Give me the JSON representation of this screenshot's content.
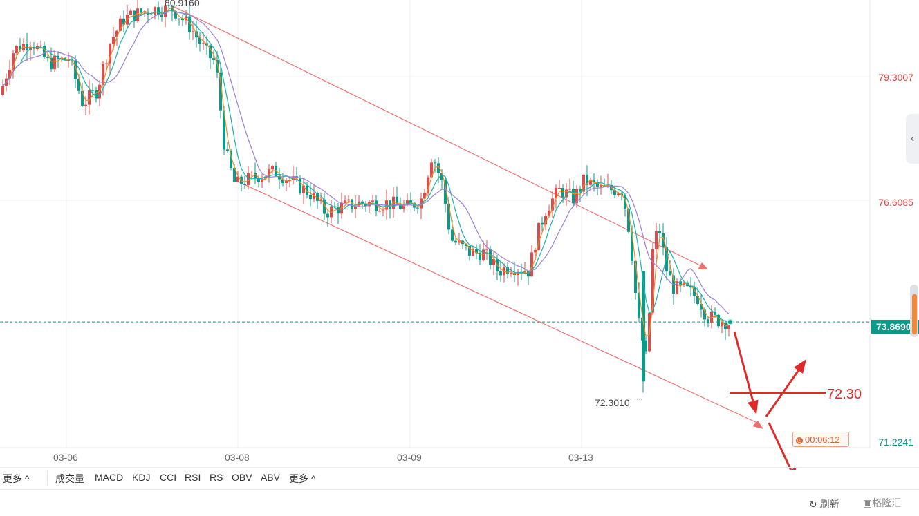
{
  "chart_data": {
    "type": "candlestick",
    "x_axis_labels": [
      "03-06",
      "03-08",
      "03-09",
      "03-13"
    ],
    "y_axis_labels": [
      "79.3007",
      "76.6085",
      "73.8690",
      "71.2241"
    ],
    "y_range": [
      71.2241,
      80.916
    ],
    "high_label": "80.9160",
    "low_label": "72.3010",
    "current_price": "73.8690",
    "target_label": "72.30",
    "countdown": "00:06:12",
    "moving_averages": [
      {
        "color": "#f08a24"
      },
      {
        "color": "#18b2a6"
      },
      {
        "color": "#9a7fd6"
      }
    ],
    "channel_color": "#f07070",
    "arrow_color": "#e02a2a",
    "up_color": "#e04a4a",
    "down_color": "#0a9a88",
    "grid": true
  },
  "indicators": {
    "more_left": "更多 ^",
    "items": [
      "成交量",
      "MACD",
      "KDJ",
      "CCI",
      "RSI",
      "RS",
      "OBV",
      "ABV"
    ],
    "more_right": "更多 ^"
  },
  "footer": {
    "refresh": "刷新",
    "brand": "格隆汇"
  },
  "side_tab_icon": "chevron-left-icon"
}
